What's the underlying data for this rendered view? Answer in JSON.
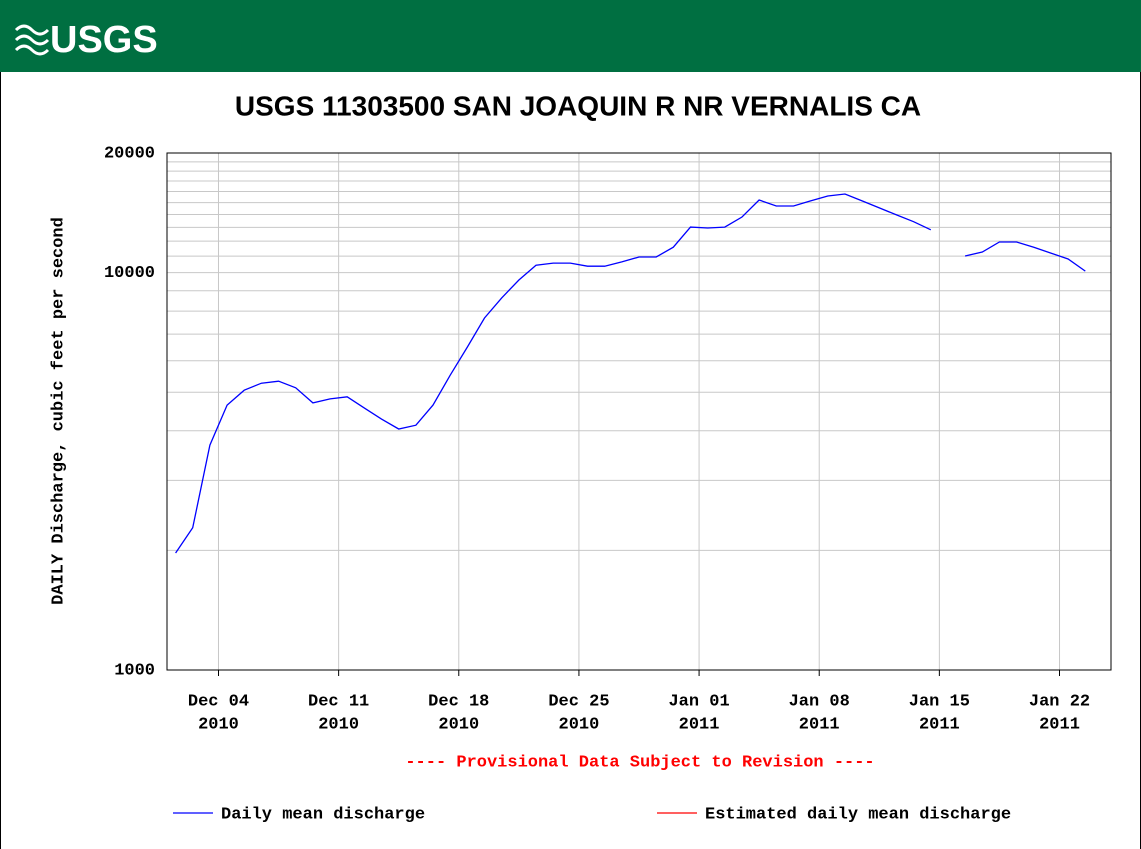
{
  "header": {
    "logo": "USGS"
  },
  "chart_data": {
    "type": "line",
    "title": "USGS 11303500 SAN JOAQUIN R NR VERNALIS CA",
    "y_label": "DAILY Discharge, cubic feet per second",
    "note": "---- Provisional Data Subject to Revision ----",
    "log_scale": true,
    "grid": true,
    "x": [
      "2010-12-01",
      "2010-12-02",
      "2010-12-03",
      "2010-12-04",
      "2010-12-05",
      "2010-12-06",
      "2010-12-07",
      "2010-12-08",
      "2010-12-09",
      "2010-12-10",
      "2010-12-11",
      "2010-12-12",
      "2010-12-13",
      "2010-12-14",
      "2010-12-15",
      "2010-12-16",
      "2010-12-17",
      "2010-12-18",
      "2010-12-19",
      "2010-12-20",
      "2010-12-21",
      "2010-12-22",
      "2010-12-23",
      "2010-12-24",
      "2010-12-25",
      "2010-12-26",
      "2010-12-27",
      "2010-12-28",
      "2010-12-29",
      "2010-12-30",
      "2010-12-31",
      "2011-01-01",
      "2011-01-02",
      "2011-01-03",
      "2011-01-04",
      "2011-01-05",
      "2011-01-06",
      "2011-01-07",
      "2011-01-08",
      "2011-01-09",
      "2011-01-10",
      "2011-01-11",
      "2011-01-12",
      "2011-01-13",
      "2011-01-14",
      "2011-01-15",
      "2011-01-16",
      "2011-01-17",
      "2011-01-18",
      "2011-01-19",
      "2011-01-20",
      "2011-01-21",
      "2011-01-22",
      "2011-01-23"
    ],
    "series": [
      {
        "name": "Daily mean discharge",
        "color": "#0000ff",
        "values": [
          1970,
          2280,
          3680,
          4640,
          5060,
          5270,
          5330,
          5130,
          4700,
          4810,
          4870,
          4560,
          4280,
          4040,
          4130,
          4640,
          5520,
          6500,
          7690,
          8640,
          9580,
          10440,
          10570,
          10570,
          10380,
          10380,
          10640,
          10950,
          10950,
          11590,
          13020,
          12950,
          13020,
          13800,
          15230,
          14710,
          14710,
          15150,
          15590,
          15770,
          15150,
          14550,
          13970,
          13430,
          12820,
          null,
          11010,
          11270,
          11940,
          11940,
          11590,
          11200,
          10820,
          10090
        ]
      },
      {
        "name": "Estimated daily mean discharge",
        "color": "#ff0000",
        "values": [
          null,
          null,
          null,
          null,
          null,
          null,
          null,
          null,
          null,
          null,
          null,
          null,
          null,
          null,
          null,
          null,
          null,
          null,
          null,
          null,
          null,
          null,
          null,
          null,
          null,
          null,
          null,
          null,
          null,
          null,
          null,
          null,
          null,
          null,
          null,
          null,
          null,
          null,
          null,
          null,
          null,
          null,
          null,
          null,
          null,
          null,
          null,
          null,
          null,
          null,
          null,
          null,
          null,
          null
        ]
      }
    ],
    "xlim": [
      "2010-12-01",
      "2011-01-25"
    ],
    "xticks": [
      {
        "value": "2010-12-04",
        "label": [
          "Dec 04",
          "2010"
        ]
      },
      {
        "value": "2010-12-11",
        "label": [
          "Dec 11",
          "2010"
        ]
      },
      {
        "value": "2010-12-18",
        "label": [
          "Dec 18",
          "2010"
        ]
      },
      {
        "value": "2010-12-25",
        "label": [
          "Dec 25",
          "2010"
        ]
      },
      {
        "value": "2011-01-01",
        "label": [
          "Jan 01",
          "2011"
        ]
      },
      {
        "value": "2011-01-08",
        "label": [
          "Jan 08",
          "2011"
        ]
      },
      {
        "value": "2011-01-15",
        "label": [
          "Jan 15",
          "2011"
        ]
      },
      {
        "value": "2011-01-22",
        "label": [
          "Jan 22",
          "2011"
        ]
      }
    ],
    "ylim": [
      1000,
      20000
    ],
    "yticks": [
      1000,
      10000,
      20000
    ],
    "yminorticks": [
      2000,
      3000,
      4000,
      5000,
      6000,
      7000,
      8000,
      9000,
      11000,
      12000,
      13000,
      14000,
      15000,
      16000,
      17000,
      18000,
      19000
    ]
  }
}
